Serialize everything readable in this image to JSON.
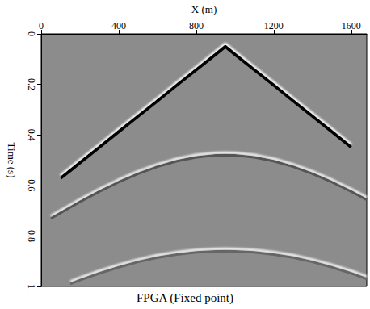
{
  "chart_data": {
    "type": "line",
    "title": "FPGA (Fixed point)",
    "x_label": "X (m)",
    "y_label": "Time (s)",
    "x": [
      50,
      100,
      150,
      200,
      300,
      400,
      500,
      600,
      700,
      800,
      900,
      950,
      1000,
      1100,
      1200,
      1300,
      1400,
      1500,
      1600,
      1680
    ],
    "series": [
      {
        "color": "#000000",
        "values": [
          null,
          0.571,
          0.541,
          0.51,
          0.449,
          0.387,
          0.326,
          0.265,
          0.203,
          0.142,
          0.081,
          0.05,
          0.081,
          0.142,
          0.203,
          0.265,
          0.326,
          0.387,
          0.449,
          null
        ]
      },
      {
        "color": "#555555",
        "values": [
          0.731,
          0.709,
          0.687,
          0.665,
          0.624,
          0.587,
          0.554,
          0.526,
          0.504,
          0.489,
          0.481,
          0.48,
          0.481,
          0.489,
          0.504,
          0.526,
          0.554,
          0.587,
          0.624,
          0.657
        ]
      },
      {
        "color": "#666666",
        "values": [
          null,
          null,
          0.99,
          0.975,
          0.948,
          0.924,
          0.903,
          0.886,
          0.874,
          0.865,
          0.861,
          0.86,
          0.861,
          0.865,
          0.874,
          0.886,
          0.903,
          0.924,
          0.948,
          0.97
        ]
      }
    ],
    "xlim": [
      0,
      1680
    ],
    "xticks": [
      0,
      400,
      800,
      1200,
      1600
    ],
    "ylim": [
      0,
      1
    ],
    "yticks": [
      0,
      0.2,
      0.4,
      0.6,
      0.8,
      1
    ],
    "grid": false
  }
}
